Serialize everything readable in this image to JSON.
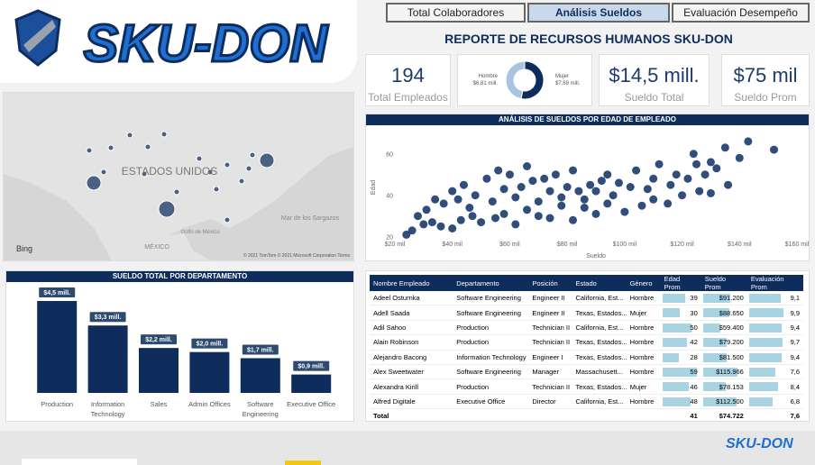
{
  "header": {
    "logo": "SKU-DON",
    "title": "REPORTE DE RECURSOS HUMANOS SKU-DON",
    "footer_logo": "SKU-DON"
  },
  "tabs": [
    "Total Colaboradores",
    "Análisis Sueldos",
    "Evaluación Desempeño"
  ],
  "kpis": [
    {
      "value": "194",
      "label": "Total Empleados"
    },
    {
      "value": "$14,5 mill.",
      "label": "Sueldo Total"
    },
    {
      "value": "$75 mil",
      "label": "Sueldo Prom"
    }
  ],
  "map": {
    "labels": [
      "ESTADOS UNIDOS",
      "Mar de los Sargazos",
      "Golfo de México",
      "MÉXICO"
    ],
    "brand": "Bing",
    "credit": "© 2021 TomTom © 2021 Microsoft Corporation Terms"
  },
  "chart_data": [
    {
      "type": "scatter",
      "title": "ANÁLISIS DE SUELDOS POR EDAD DE EMPLEADO",
      "x_label": "Sueldo",
      "y_label": "Edad",
      "color": "#1b3a6b",
      "grid": false,
      "xlim": [
        20000,
        160000
      ],
      "ylim": [
        19,
        69
      ],
      "xticks": [
        {
          "value": 20000,
          "label": "$20 mil"
        },
        {
          "value": 40000,
          "label": "$40 mil"
        },
        {
          "value": 60000,
          "label": "$60 mil"
        },
        {
          "value": 80000,
          "label": "$80 mil"
        },
        {
          "value": 100000,
          "label": "$100 mil"
        },
        {
          "value": 120000,
          "label": "$120 mil"
        },
        {
          "value": 140000,
          "label": "$140 mil"
        },
        {
          "value": 160000,
          "label": "$160 mil"
        }
      ],
      "yticks": [
        20,
        40,
        60
      ],
      "x": [
        26000,
        30000,
        33000,
        36000,
        40000,
        43000,
        47000,
        50000,
        55000,
        58000,
        62000,
        66000,
        70000,
        74000,
        78000,
        82000,
        86000,
        90000,
        94000,
        100000,
        106000,
        110000,
        115000,
        120000,
        126000,
        130000,
        136000,
        130000,
        135000,
        143000,
        152000,
        140000,
        125000,
        118000,
        110000,
        104000,
        98000,
        92000,
        88000,
        84000,
        80000,
        76000,
        72000,
        68000,
        64000,
        60000,
        56000,
        52000,
        48000,
        44000,
        40000,
        37000,
        34000,
        31000,
        28000,
        24000,
        46000,
        54000,
        62000,
        70000,
        78000,
        86000,
        96000,
        108000,
        116000,
        122000,
        128000,
        132000,
        124000,
        112000,
        102000,
        90000,
        74000,
        58000,
        42000,
        66000,
        82000,
        94000
      ],
      "values": [
        23,
        26,
        27,
        25,
        24,
        28,
        30,
        27,
        29,
        31,
        26,
        33,
        30,
        29,
        35,
        28,
        34,
        31,
        36,
        32,
        35,
        38,
        36,
        40,
        42,
        41,
        45,
        56,
        63,
        66,
        62,
        58,
        55,
        50,
        48,
        52,
        46,
        47,
        45,
        42,
        44,
        50,
        48,
        47,
        44,
        50,
        52,
        48,
        40,
        45,
        42,
        36,
        38,
        33,
        30,
        21,
        34,
        37,
        39,
        37,
        39,
        38,
        40,
        43,
        45,
        48,
        50,
        53,
        60,
        55,
        44,
        42,
        42,
        43,
        38,
        54,
        52,
        50
      ]
    },
    {
      "type": "bar",
      "title": "SUELDO TOTAL POR DEPARTAMENTO",
      "color": "#0e2c5c",
      "categories": [
        "Production",
        "Information Technology",
        "Sales",
        "Admin Offices",
        "Software Engineering",
        "Executive Office"
      ],
      "values": [
        4.5,
        3.3,
        2.2,
        2.0,
        1.7,
        0.9
      ],
      "value_labels": [
        "$4,5 mill.",
        "$3,3 mill.",
        "$2,2 mill.",
        "$2,0 mill.",
        "$1,7 mill.",
        "$0,9 mill."
      ]
    },
    {
      "type": "pie",
      "categories": [
        "Hombre",
        "Mujer"
      ],
      "values": [
        6.81,
        7.69
      ],
      "value_labels": [
        "$6,81 mill.",
        "$7,69 mill."
      ],
      "colors": [
        "#a9c4e0",
        "#0e2c5c"
      ]
    }
  ],
  "table": {
    "columns": [
      "Nombre Empleado",
      "Departamento",
      "Posición",
      "Estado",
      "Género",
      "Edad Prom",
      "Sueldo Prom",
      "Evaluación Prom"
    ],
    "rows": [
      [
        "Adeel Osturnka",
        "Software Engineering",
        "Engineer II",
        "California, Est...",
        "Hombre",
        39,
        {
          "value": 91200,
          "label": "$91.200"
        },
        {
          "value": 9.1,
          "label": "9,1"
        }
      ],
      [
        "Adell Saada",
        "Software Engineering",
        "Engineer II",
        "Texas, Estados...",
        "Mujer",
        30,
        {
          "value": 88650,
          "label": "$88.650"
        },
        {
          "value": 9.9,
          "label": "9,9"
        }
      ],
      [
        "Adil Sahoo",
        "Production",
        "Technician II",
        "California, Est...",
        "Hombre",
        50,
        {
          "value": 59400,
          "label": "$59.400"
        },
        {
          "value": 9.4,
          "label": "9,4"
        }
      ],
      [
        "Alain Robinson",
        "Production",
        "Technician II",
        "Texas, Estados...",
        "Hombre",
        42,
        {
          "value": 79200,
          "label": "$79.200"
        },
        {
          "value": 9.7,
          "label": "9,7"
        }
      ],
      [
        "Alejandro Bacong",
        "Information Technology",
        "Engineer I",
        "Texas, Estados...",
        "Hombre",
        28,
        {
          "value": 81500,
          "label": "$81.500"
        },
        {
          "value": 9.4,
          "label": "9,4"
        }
      ],
      [
        "Alex Sweetwater",
        "Software Engineering",
        "Manager",
        "Massachusett...",
        "Hombre",
        59,
        {
          "value": 115966,
          "label": "$115.966"
        },
        {
          "value": 7.6,
          "label": "7,6"
        }
      ],
      [
        "Alexandra Kirill",
        "Production",
        "Technician II",
        "Texas, Estados...",
        "Mujer",
        46,
        {
          "value": 78153,
          "label": "$78.153"
        },
        {
          "value": 8.4,
          "label": "8,4"
        }
      ],
      [
        "Alfred Digitale",
        "Executive Office",
        "Director",
        "California, Est...",
        "Hombre",
        48,
        {
          "value": 112500,
          "label": "$112.500"
        },
        {
          "value": 6.8,
          "label": "6,8"
        }
      ]
    ],
    "total": {
      "label": "Total",
      "edad": 41,
      "sueldo": {
        "value": 74722,
        "label": "$74.722"
      },
      "evaluacion": {
        "value": 7.6,
        "label": "7,6"
      }
    }
  }
}
